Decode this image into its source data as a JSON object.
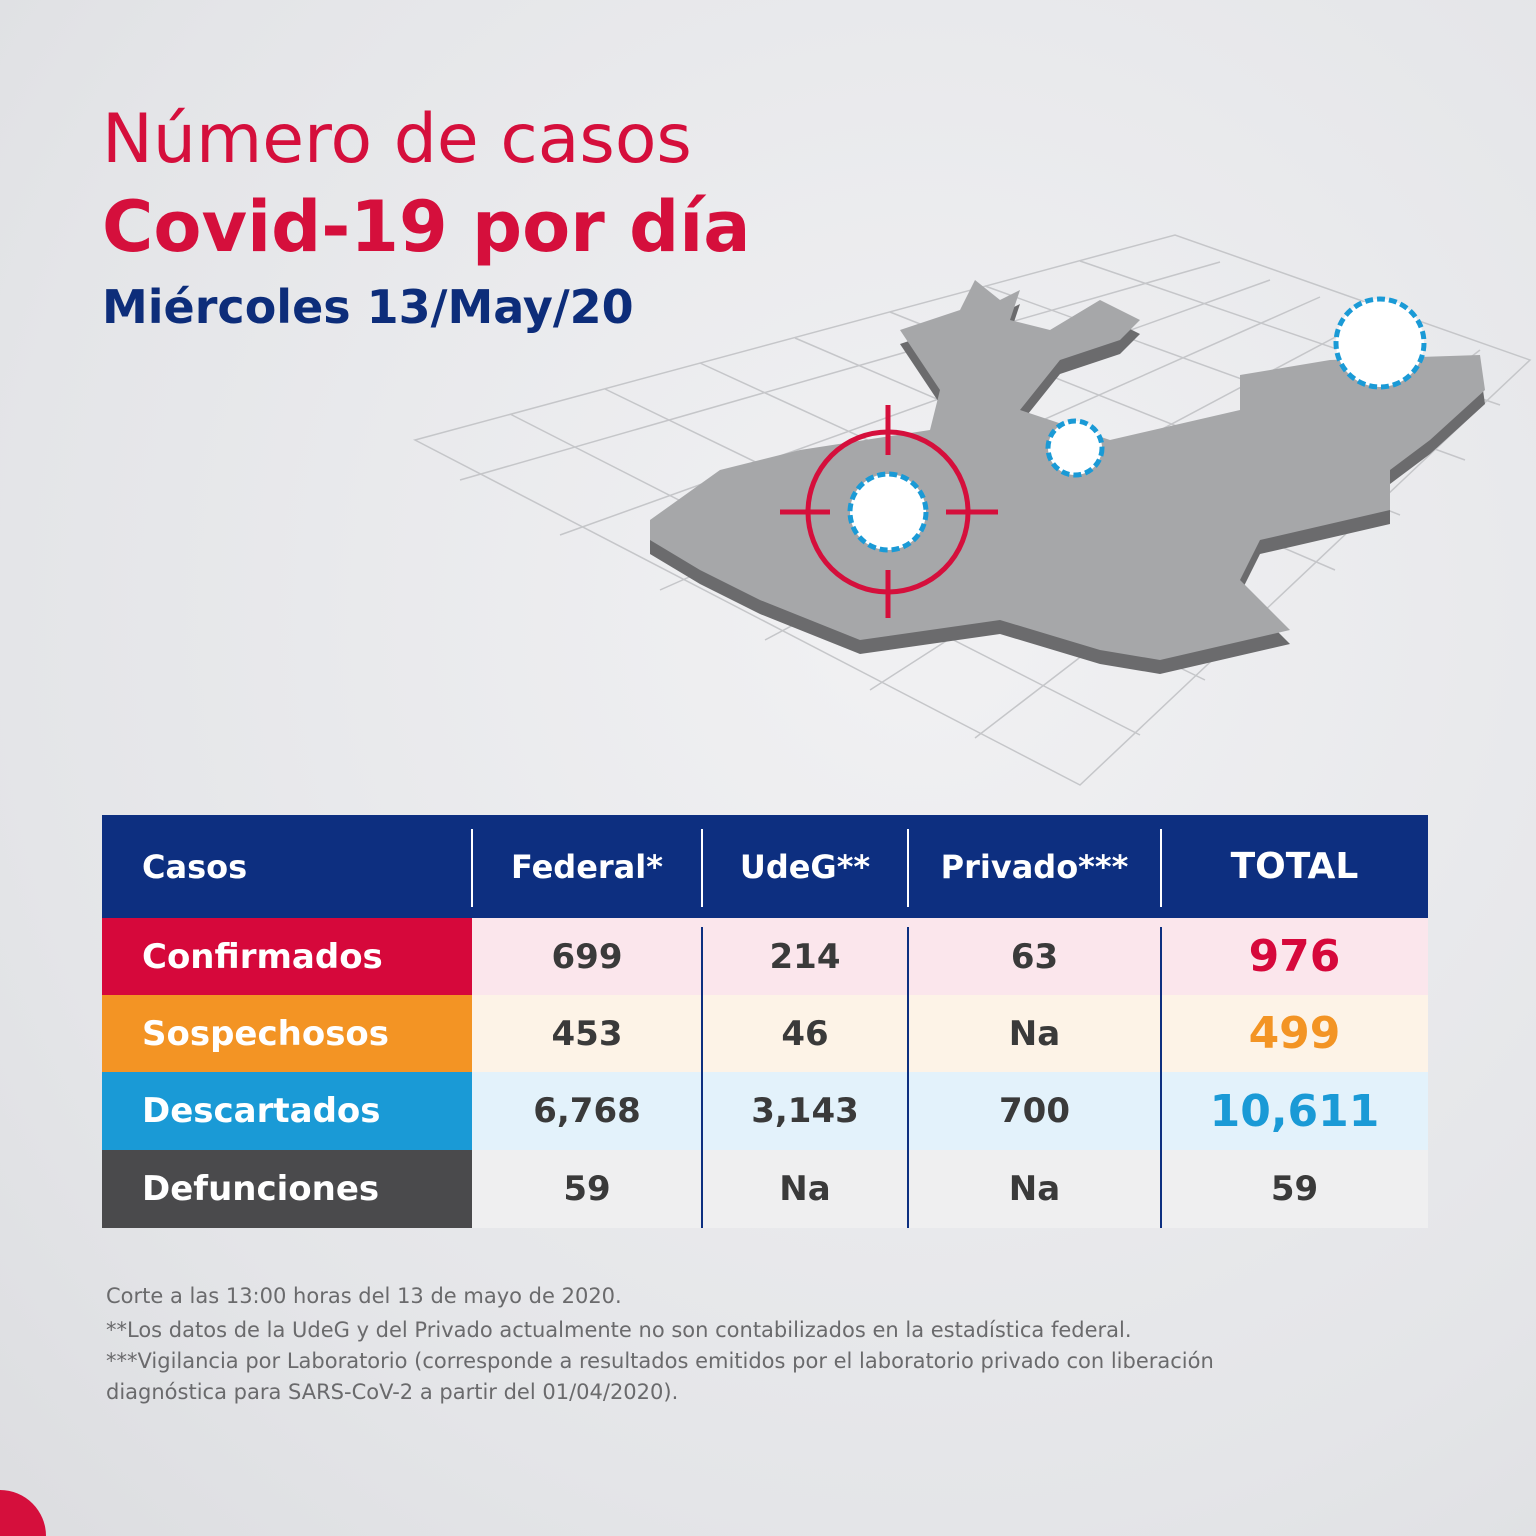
{
  "header": {
    "title_line1": "Número de casos",
    "title_line2": "Covid-19 por día",
    "date": "Miércoles 13/May/20"
  },
  "table": {
    "headers": [
      "Casos",
      "Federal*",
      "UdeG**",
      "Privado***",
      "TOTAL"
    ],
    "rows": [
      [
        "Confirmados",
        "699",
        "214",
        "63",
        "976"
      ],
      [
        "Sospechosos",
        "453",
        "46",
        "Na",
        "499"
      ],
      [
        "Descartados",
        "6,768",
        "3,143",
        "700",
        "10,611"
      ],
      [
        "Defunciones",
        "59",
        "Na",
        "Na",
        "59"
      ]
    ]
  },
  "footnotes": [
    "Corte a las 13:00 horas del 13 de mayo de 2020.",
    "**Los datos de la UdeG y del Privado actualmente no son contabilizados en la estadística federal.",
    "***Vigilancia por Laboratorio (corresponde a resultados emitidos por el laboratorio privado con liberación",
    "diagnóstica para SARS-CoV-2 a partir del 01/04/2020)."
  ]
}
